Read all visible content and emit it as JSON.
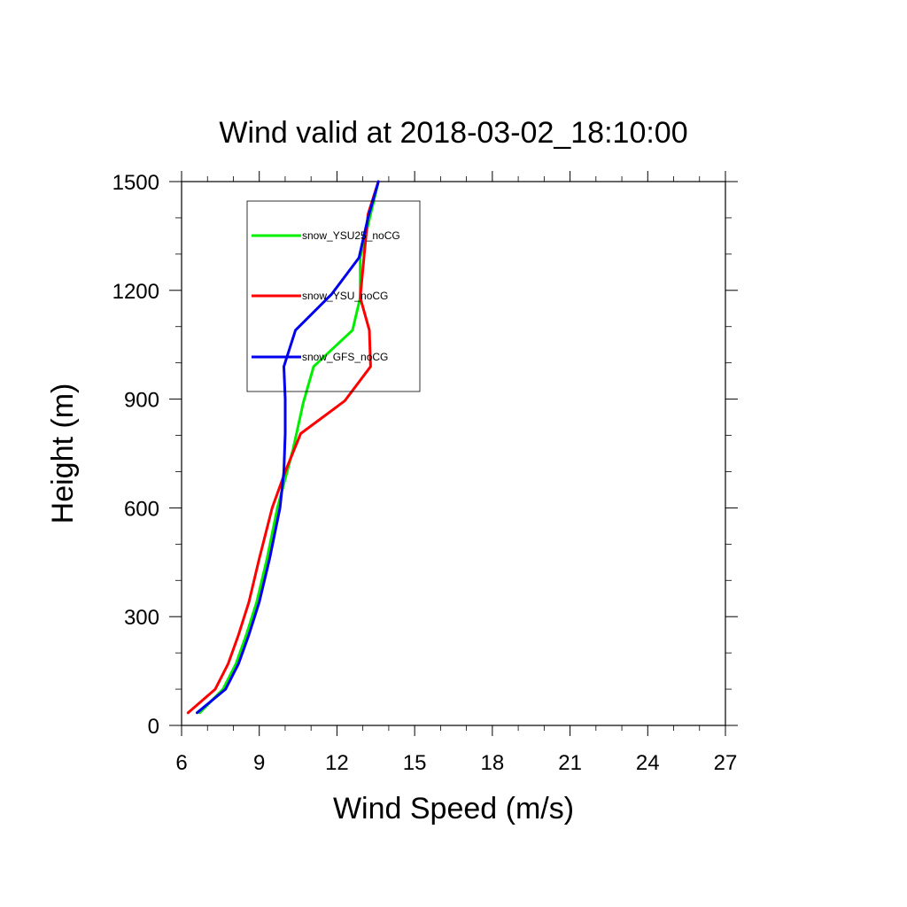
{
  "chart_data": {
    "type": "line",
    "title": "Wind valid at 2018-03-02_18:10:00",
    "xlabel": "Wind Speed (m/s)",
    "ylabel": "Height (m)",
    "xlim": [
      6,
      27
    ],
    "ylim": [
      0,
      1500
    ],
    "xticks": [
      6,
      9,
      12,
      15,
      18,
      21,
      24,
      27
    ],
    "yticks": [
      0,
      300,
      600,
      900,
      1200,
      1500
    ],
    "legend_position": "top-left inset",
    "grid": false,
    "series": [
      {
        "name": "snow_YSU25_noCG",
        "color": "#00ee00",
        "points": [
          [
            6.7,
            35
          ],
          [
            7.6,
            100
          ],
          [
            8.1,
            170
          ],
          [
            8.5,
            250
          ],
          [
            8.9,
            340
          ],
          [
            9.3,
            460
          ],
          [
            9.7,
            600
          ],
          [
            10.3,
            760
          ],
          [
            10.7,
            890
          ],
          [
            11.1,
            990
          ],
          [
            12.6,
            1090
          ],
          [
            12.9,
            1180
          ],
          [
            12.9,
            1290
          ],
          [
            13.3,
            1410
          ],
          [
            13.6,
            1500
          ]
        ]
      },
      {
        "name": "snow_YSU_noCG",
        "color": "#ff0000",
        "points": [
          [
            6.25,
            35
          ],
          [
            7.3,
            100
          ],
          [
            7.8,
            170
          ],
          [
            8.2,
            250
          ],
          [
            8.6,
            340
          ],
          [
            9.0,
            460
          ],
          [
            9.5,
            600
          ],
          [
            10.0,
            700
          ],
          [
            10.6,
            805
          ],
          [
            12.3,
            895
          ],
          [
            13.3,
            990
          ],
          [
            13.25,
            1090
          ],
          [
            12.9,
            1180
          ],
          [
            13.2,
            1410
          ],
          [
            13.6,
            1500
          ]
        ]
      },
      {
        "name": "snow_GFS_noCG",
        "color": "#0000ee",
        "points": [
          [
            6.6,
            35
          ],
          [
            7.7,
            100
          ],
          [
            8.2,
            170
          ],
          [
            8.6,
            250
          ],
          [
            9.0,
            340
          ],
          [
            9.4,
            460
          ],
          [
            9.8,
            600
          ],
          [
            9.95,
            700
          ],
          [
            10.0,
            805
          ],
          [
            10.0,
            900
          ],
          [
            9.95,
            990
          ],
          [
            10.4,
            1090
          ],
          [
            11.8,
            1190
          ],
          [
            12.85,
            1290
          ],
          [
            13.2,
            1400
          ],
          [
            13.6,
            1500
          ]
        ]
      }
    ]
  }
}
